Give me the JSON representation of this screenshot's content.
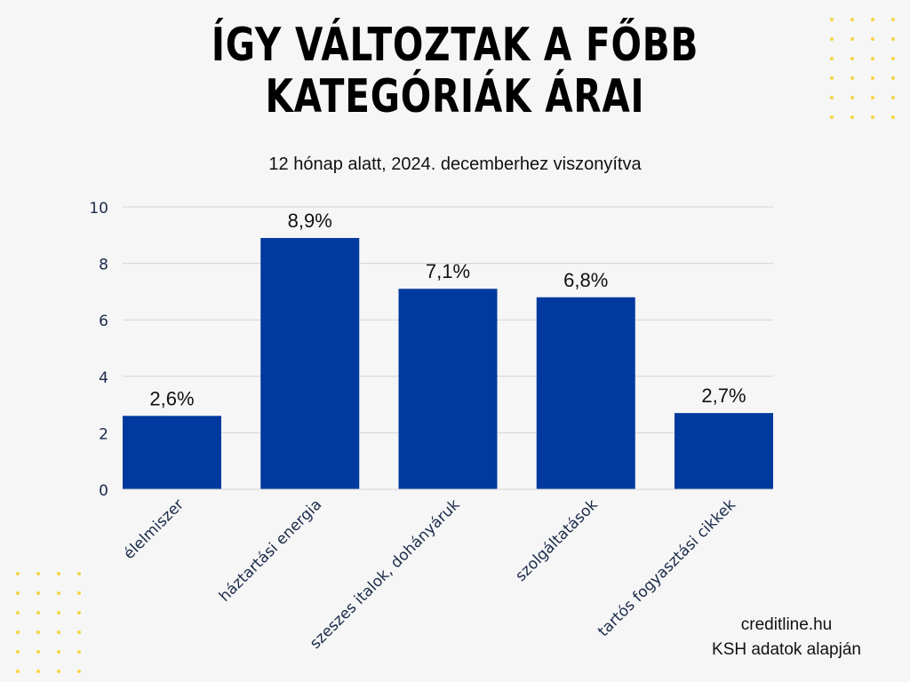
{
  "header": {
    "title_line1": "ÍGY VÁLTOZTAK A FŐBB",
    "title_line2": "KATEGÓRIÁK ÁRAI",
    "subtitle": "12 hónap alatt, 2024. decemberhez viszonyítva"
  },
  "source": {
    "line1": "creditline.hu",
    "line2": "KSH adatok alapján"
  },
  "colors": {
    "bar": "#003a9e",
    "accent_dots": "#f5d547",
    "background": "#f6f6f6"
  },
  "chart_data": {
    "type": "bar",
    "title": "ÍGY VÁLTOZTAK A FŐBB KATEGÓRIÁK ÁRAI",
    "subtitle": "12 hónap alatt, 2024. decemberhez viszonyítva",
    "categories": [
      "élelmiszer",
      "háztartási energia",
      "szeszes italok, dohányáruk",
      "szolgáltatások",
      "tartós fogyasztási cikkek"
    ],
    "values": [
      2.6,
      8.9,
      7.1,
      6.8,
      2.7
    ],
    "data_labels": [
      "2,6%",
      "8,9%",
      "7,1%",
      "6,8%",
      "2,7%"
    ],
    "xlabel": "",
    "ylabel": "",
    "ylim": [
      0,
      10
    ],
    "yticks": [
      0,
      2,
      4,
      6,
      8,
      10
    ],
    "grid": true,
    "legend": "none"
  }
}
